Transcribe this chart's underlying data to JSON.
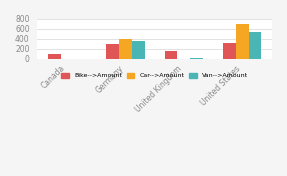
{
  "categories": [
    "Canada",
    "Germany",
    "United Kingdom",
    "United States"
  ],
  "series": {
    "Bike-->Amount": [
      100,
      300,
      150,
      325
    ],
    "Car-->Amount": [
      5,
      400,
      5,
      700
    ],
    "Van-->Amount": [
      5,
      350,
      10,
      525
    ]
  },
  "colors": {
    "Bike-->Amount": "#e05555",
    "Car-->Amount": "#f5a623",
    "Van-->Amount": "#4ab5b5"
  },
  "ylim": [
    0,
    800
  ],
  "yticks": [
    0,
    200,
    400,
    600,
    800
  ],
  "bg_color": "#f5f5f5",
  "plot_bg": "#ffffff",
  "bar_width": 0.22,
  "legend_labels": [
    "Bike-->Amount",
    "Car-->Amount",
    "Van-->Amount"
  ]
}
